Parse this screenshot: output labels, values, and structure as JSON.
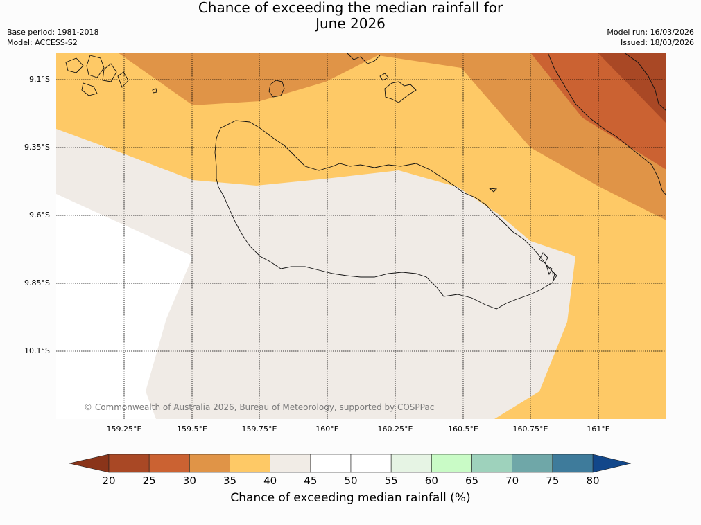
{
  "title_line1": "Chance of exceeding the median rainfall for",
  "title_line2": "June 2026",
  "base_period": "Base period: 1981-2018",
  "model": "Model: ACCESS-S2",
  "model_run": "Model run: 16/03/2026",
  "issued": "Issued: 18/03/2026",
  "copyright": "© Commonwealth of Australia 2026, Bureau of Meteorology, supported by COSPPac",
  "lat_labels": [
    "9.1°S",
    "9.35°S",
    "9.6°S",
    "9.85°S",
    "10.1°S"
  ],
  "lon_labels": [
    "159.25°E",
    "159.5°E",
    "159.75°E",
    "160°E",
    "160.25°E",
    "160.5°E",
    "160.75°E",
    "161°E"
  ],
  "colorbar": {
    "label": "Chance of exceeding median rainfall (%)",
    "ticks": [
      "20",
      "25",
      "30",
      "35",
      "40",
      "45",
      "50",
      "55",
      "60",
      "65",
      "70",
      "75",
      "80"
    ],
    "colors": [
      "#a94825",
      "#cb6232",
      "#e09447",
      "#fec966",
      "#f1ece6",
      "#ffffff",
      "#ffffff",
      "#e6f4e4",
      "#c9fbc6",
      "#9ed2bc",
      "#6fa7a8",
      "#3e7b9b"
    ],
    "under_color": "#8a3419",
    "over_color": "#12478a"
  },
  "map": {
    "region": "Guadalcanal, Solomon Islands",
    "lat_range": [
      "9.0°S",
      "10.3°S"
    ],
    "lon_range": [
      "159.0°E",
      "161.25°E"
    ]
  }
}
